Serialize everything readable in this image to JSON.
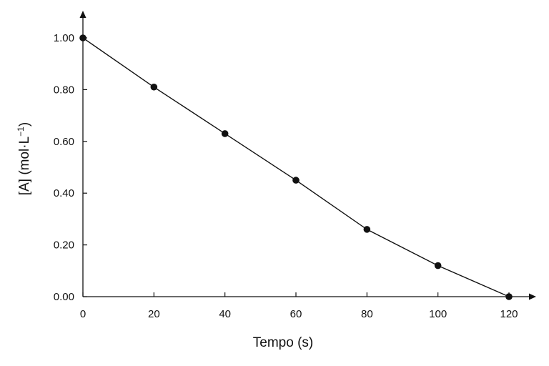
{
  "chart_data": {
    "type": "line",
    "title": "",
    "xlabel": "Tempo (s)",
    "ylabel_text": "[A] (mol·L",
    "ylabel_sup": "−1",
    "ylabel_close": ")",
    "xlim": [
      0,
      120
    ],
    "ylim": [
      0,
      1.0
    ],
    "grid": false,
    "legend": "none",
    "x_ticks": [
      0,
      20,
      40,
      60,
      80,
      100,
      120
    ],
    "x_tick_labels": [
      "0",
      "20",
      "40",
      "60",
      "80",
      "100",
      "120"
    ],
    "y_ticks": [
      0,
      0.2,
      0.4,
      0.6,
      0.8,
      1.0
    ],
    "y_tick_labels": [
      "0.00",
      "0.20",
      "0.40",
      "0.60",
      "0.80",
      "1.00"
    ],
    "series": [
      {
        "x": [
          0,
          20,
          40,
          60,
          80,
          100,
          120
        ],
        "y": [
          1.0,
          0.81,
          0.63,
          0.45,
          0.26,
          0.12,
          0.0
        ]
      }
    ],
    "colors": {
      "line": "#111111",
      "marker": "#111111",
      "axis": "#111111"
    }
  }
}
